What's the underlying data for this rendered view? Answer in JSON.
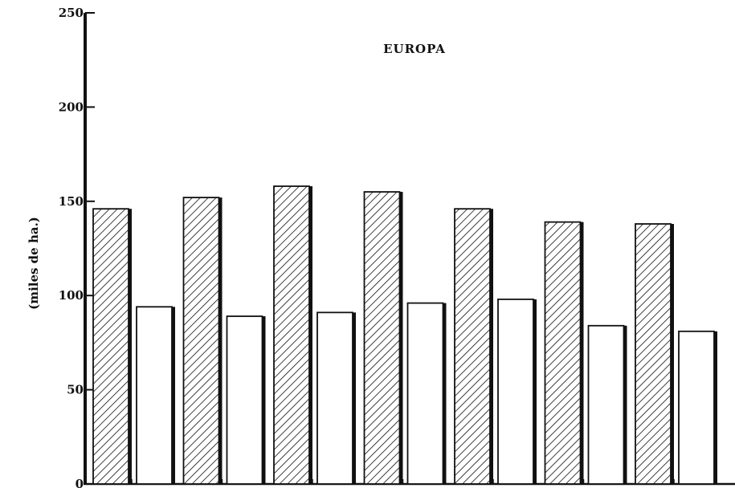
{
  "chart_data": {
    "type": "bar",
    "title": "EUROPA",
    "ylabel": "(miles de ha.)",
    "xlabel": "",
    "ylim": [
      0,
      250
    ],
    "yticks": [
      0,
      50,
      100,
      150,
      200,
      250
    ],
    "ytick_labels": [
      "0",
      "50",
      "100",
      "150",
      "200",
      "250"
    ],
    "categories": [
      "",
      "",
      "",
      "",
      "",
      "",
      ""
    ],
    "series": [
      {
        "values": [
          146,
          152,
          158,
          155,
          146,
          139,
          138
        ]
      },
      {
        "values": [
          94,
          89,
          91,
          96,
          98,
          84,
          81
        ]
      }
    ],
    "grid": false,
    "legend": "none",
    "colors": {
      "ink": "#111111",
      "fill_open": "#ffffff"
    }
  }
}
